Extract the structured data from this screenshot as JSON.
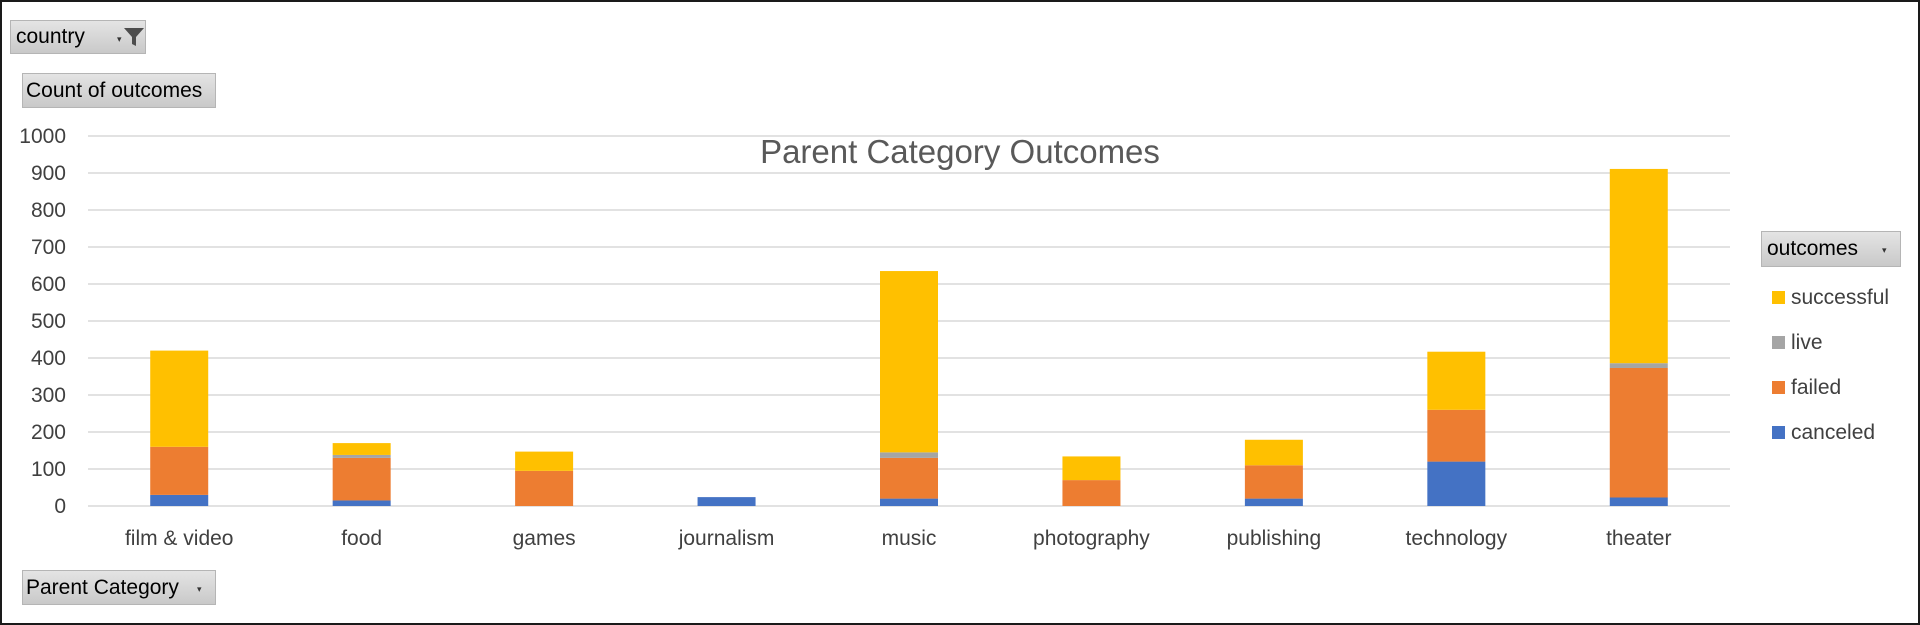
{
  "filters": {
    "country_label": "country",
    "value_field_label": "Count of outcomes",
    "axis_field_label": "Parent Category",
    "legend_field_label": "outcomes"
  },
  "icons": {
    "filter": "funnel-filter-icon",
    "dropdown": "dropdown-arrow-icon"
  },
  "chart_data": {
    "type": "bar",
    "stacked": true,
    "title": "Parent Category Outcomes",
    "xlabel": "",
    "ylabel": "",
    "ylim": [
      0,
      1000
    ],
    "yticks": [
      0,
      100,
      200,
      300,
      400,
      500,
      600,
      700,
      800,
      900,
      1000
    ],
    "grid": true,
    "legend_position": "right",
    "categories": [
      "film & video",
      "food",
      "games",
      "journalism",
      "music",
      "photography",
      "publishing",
      "technology",
      "theater"
    ],
    "series": [
      {
        "name": "canceled",
        "color": "#4472C4",
        "values": [
          30,
          15,
          0,
          24,
          20,
          0,
          20,
          120,
          23
        ]
      },
      {
        "name": "failed",
        "color": "#ED7D31",
        "values": [
          130,
          115,
          95,
          0,
          110,
          70,
          90,
          140,
          350
        ]
      },
      {
        "name": "live",
        "color": "#A5A5A5",
        "values": [
          0,
          8,
          0,
          0,
          15,
          0,
          0,
          0,
          13
        ]
      },
      {
        "name": "successful",
        "color": "#FFC000",
        "values": [
          260,
          32,
          52,
          0,
          490,
          64,
          69,
          157,
          525
        ]
      }
    ],
    "legend_order": [
      "successful",
      "live",
      "failed",
      "canceled"
    ]
  }
}
